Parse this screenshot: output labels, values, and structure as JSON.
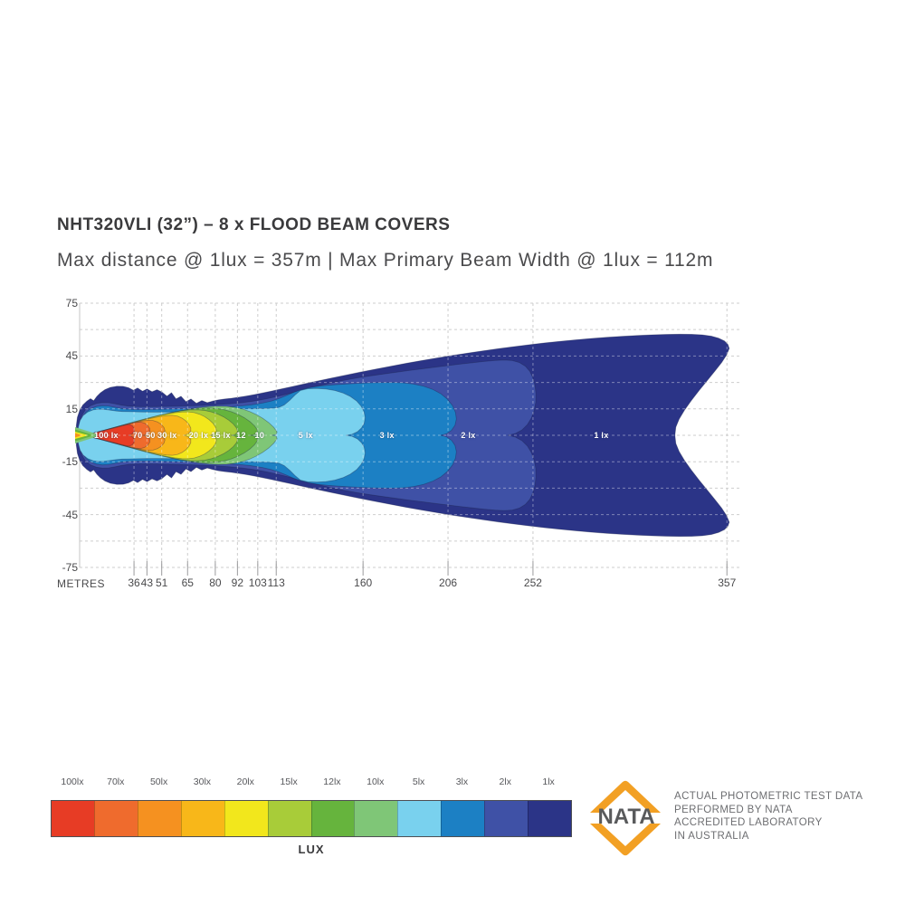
{
  "title": "NHT320VLI (32”) – 8 x FLOOD BEAM COVERS",
  "subtitle": "Max distance @ 1lux = 357m  |  Max Primary  Beam Width @ 1lux = 112m",
  "chart_data": {
    "type": "contour",
    "description": "Isolux beam pattern (overhead view) for NHT320VLI 32in flood beam; nested illuminance contours from 100 lux near the lamp to 1 lux at maximum range.",
    "max_distance_at_1lux_m": 357,
    "max_primary_beam_width_at_1lux_m": 112,
    "x_axis": {
      "label": "METRES",
      "ticks": [
        36,
        43,
        51,
        65,
        80,
        92,
        103,
        113,
        160,
        206,
        252,
        357
      ],
      "range_m": [
        0,
        365
      ]
    },
    "y_axis": {
      "ticks": [
        75,
        45,
        15,
        -15,
        -45,
        -75
      ],
      "range_m": [
        -75,
        75
      ],
      "gridline_step_m": 15,
      "unit": "METRES"
    },
    "grid": true,
    "levels": [
      {
        "legend_label": "100lx",
        "contour_label": "100 lx",
        "lux": 100,
        "max_distance_m": 36,
        "label_pos_m": 21,
        "color": "#e73c25"
      },
      {
        "legend_label": "70lx",
        "contour_label": "70",
        "lux": 70,
        "max_distance_m": 43,
        "label_pos_m": 38,
        "color": "#ef6b2d"
      },
      {
        "legend_label": "50lx",
        "contour_label": "50",
        "lux": 50,
        "max_distance_m": 51,
        "label_pos_m": 45,
        "color": "#f59120"
      },
      {
        "legend_label": "30lx",
        "contour_label": "30 lx",
        "lux": 30,
        "max_distance_m": 65,
        "label_pos_m": 54,
        "color": "#f8b719"
      },
      {
        "legend_label": "20lx",
        "contour_label": "20 lx",
        "lux": 20,
        "max_distance_m": 80,
        "label_pos_m": 71,
        "color": "#f2e71c"
      },
      {
        "legend_label": "15lx",
        "contour_label": "15 lx",
        "lux": 15,
        "max_distance_m": 92,
        "label_pos_m": 83,
        "color": "#a8cc39"
      },
      {
        "legend_label": "12lx",
        "contour_label": "12",
        "lux": 12,
        "max_distance_m": 103,
        "label_pos_m": 94,
        "color": "#66b43d"
      },
      {
        "legend_label": "10lx",
        "contour_label": "10",
        "lux": 10,
        "max_distance_m": 113,
        "label_pos_m": 104,
        "color": "#7fc677"
      },
      {
        "legend_label": "5lx",
        "contour_label": "5 lx",
        "lux": 5,
        "max_distance_m": 160,
        "label_pos_m": 129,
        "color": "#79d1ee"
      },
      {
        "legend_label": "3lx",
        "contour_label": "3 lx",
        "lux": 3,
        "max_distance_m": 206,
        "label_pos_m": 173,
        "color": "#1c80c4"
      },
      {
        "legend_label": "2lx",
        "contour_label": "2 lx",
        "lux": 2,
        "max_distance_m": 252,
        "label_pos_m": 217,
        "color": "#3f51a6"
      },
      {
        "legend_label": "1lx",
        "contour_label": "1 lx",
        "lux": 1,
        "max_distance_m": 357,
        "label_pos_m": 289,
        "color": "#2b3487"
      }
    ],
    "legend": {
      "title": "LUX",
      "position": "bottom"
    }
  },
  "accreditation": {
    "logo_text": "NATA",
    "logo_color": "#f2a024",
    "lines": [
      "ACTUAL PHOTOMETRIC TEST DATA",
      "PERFORMED BY NATA",
      "ACCREDITED LABORATORY",
      "IN AUSTRALIA"
    ]
  }
}
